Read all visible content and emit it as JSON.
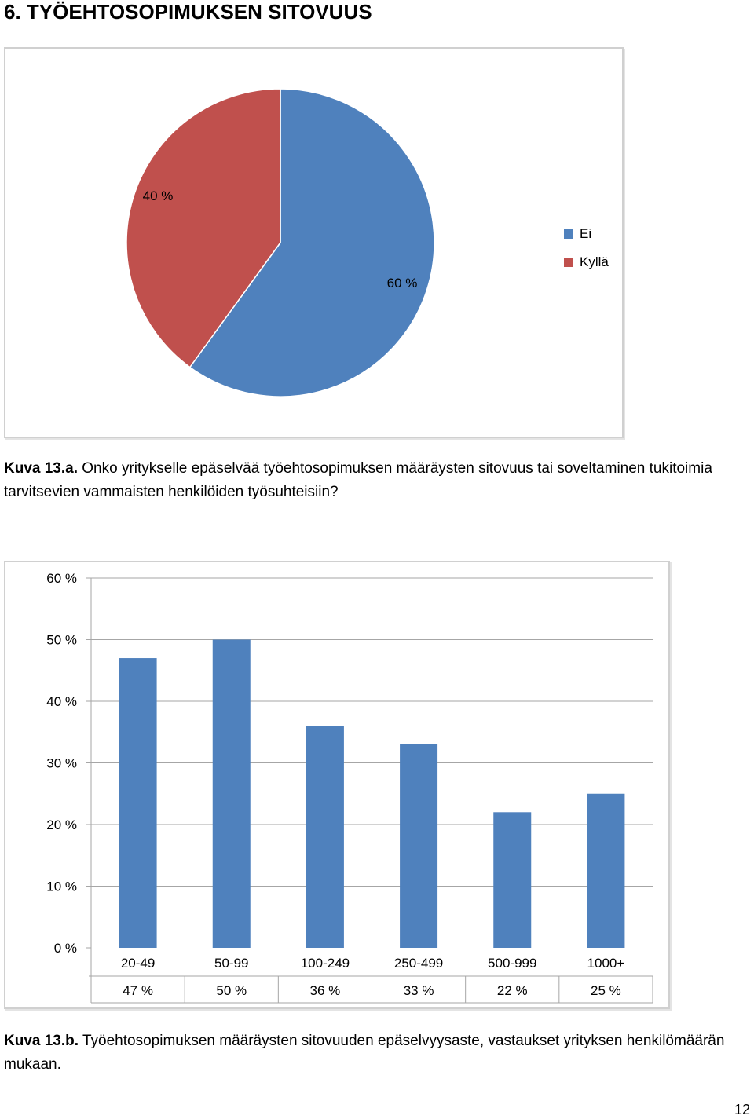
{
  "page": {
    "heading": "6. TYÖEHTOSOPIMUKSEN SITOVUUS",
    "caption_a_label": "Kuva 13.a.",
    "caption_a_text": " Onko yritykselle epäselvää työehtosopimuksen määräysten sitovuus tai soveltaminen tukitoimia tarvitsevien vammaisten henkilöiden työsuhteisiin?",
    "caption_b_label": "Kuva 13.b.",
    "caption_b_text": " Työehtosopimuksen määräysten sitovuuden epäselvyysaste, vastaukset yrityksen henkilömäärän mukaan.",
    "page_number": "12"
  },
  "chart_data": [
    {
      "type": "pie",
      "labels": [
        "Ei",
        "Kyllä"
      ],
      "values": [
        60,
        40
      ],
      "data_labels": [
        "60 %",
        "40 %"
      ],
      "colors": [
        "#4f81bd",
        "#c0504d"
      ],
      "legend_position": "right"
    },
    {
      "type": "bar",
      "categories": [
        "20-49",
        "50-99",
        "100-249",
        "250-499",
        "500-999",
        "1000+"
      ],
      "values": [
        47,
        50,
        36,
        33,
        22,
        25
      ],
      "table_values": [
        "47 %",
        "50 %",
        "36 %",
        "33 %",
        "22 %",
        "25 %"
      ],
      "ylim": [
        0,
        60
      ],
      "yticks": [
        "0 %",
        "10 %",
        "20 %",
        "30 %",
        "40 %",
        "50 %",
        "60 %"
      ],
      "grid": true,
      "color": "#4f81bd",
      "data_table": true
    }
  ]
}
